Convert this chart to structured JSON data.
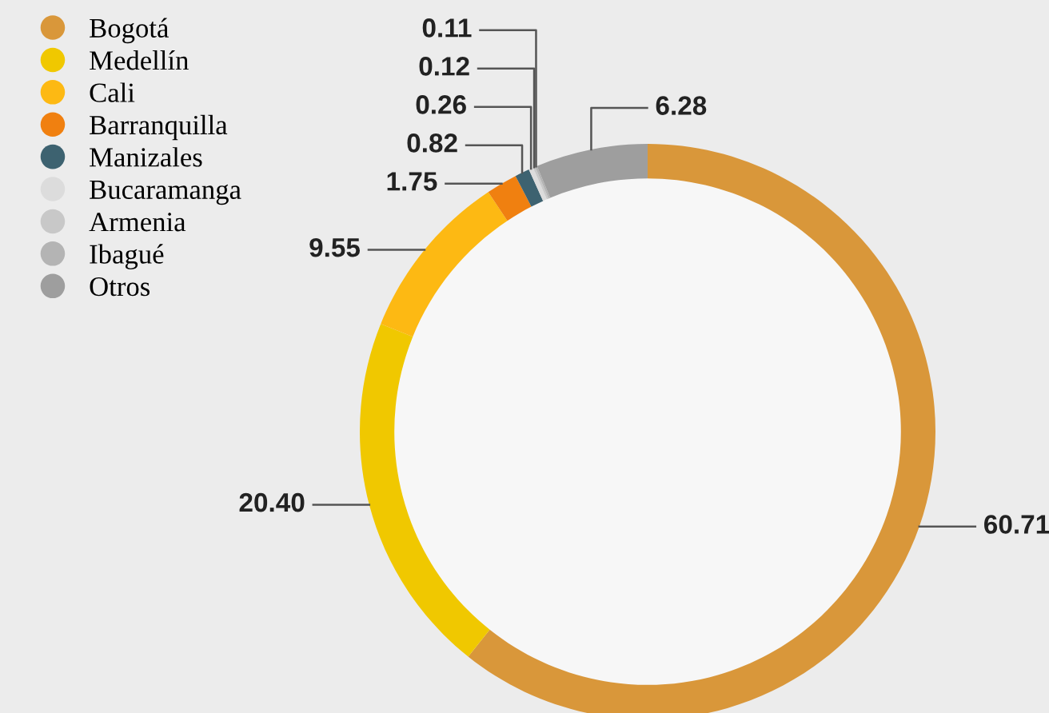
{
  "chart_data": {
    "type": "donut",
    "categories": [
      "Bogotá",
      "Medellín",
      "Cali",
      "Barranquilla",
      "Manizales",
      "Bucaramanga",
      "Armenia",
      "Ibagué",
      "Otros"
    ],
    "values": [
      60.71,
      20.4,
      9.55,
      1.75,
      0.82,
      0.26,
      0.12,
      0.11,
      6.28
    ],
    "colors": [
      "#d9973a",
      "#f0c800",
      "#fdb913",
      "#f08010",
      "#3d6270",
      "#dcdcdc",
      "#c8c8c8",
      "#b4b4b4",
      "#9e9e9e"
    ],
    "value_labels": [
      "60.71",
      "20.40",
      "9.55",
      "1.75",
      "0.82",
      "0.26",
      "0.12",
      "0.11",
      "6.28"
    ],
    "legend": "top left"
  }
}
